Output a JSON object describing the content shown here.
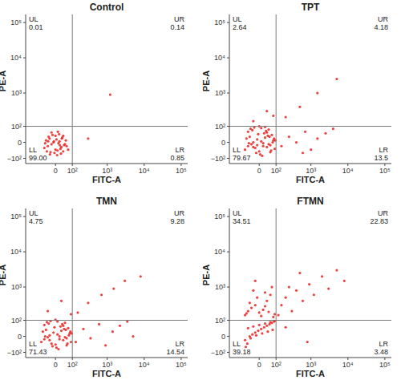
{
  "chart_data": [
    {
      "type": "scatter",
      "title": "Control",
      "xlabel": "FITC-A",
      "ylabel": "PE-A",
      "color": "#e8231f",
      "xlim": [
        -250,
        150000
      ],
      "ylim": [
        -150,
        170000
      ],
      "xticks": [
        0,
        {
          "value": 100,
          "label": "10²"
        },
        {
          "value": 1000,
          "label": "10³"
        },
        {
          "value": 10000,
          "label": "10⁴"
        },
        {
          "value": 100000,
          "label": "10⁵"
        }
      ],
      "yticks": [
        {
          "value": -100,
          "label": "−10²"
        },
        0,
        {
          "value": 100,
          "label": "10²"
        },
        {
          "value": 1000,
          "label": "10³"
        },
        {
          "value": 10000,
          "label": "10⁴"
        },
        {
          "value": 100000,
          "label": "10⁵"
        }
      ],
      "gates": {
        "x": 100,
        "y": 100
      },
      "quadrant_labels": [
        "UL",
        "UR",
        "LL",
        "LR"
      ],
      "quadrant_values": [
        0.01,
        0.14,
        99.0,
        0.85
      ],
      "quadrant_value_labels": [
        "0.01",
        "0.14",
        "99.00",
        "0.85"
      ],
      "x": [
        -60,
        -40,
        -20,
        0,
        15,
        30,
        45,
        -50,
        -30,
        -10,
        5,
        20,
        35,
        50,
        -45,
        -25,
        -5,
        10,
        25,
        40,
        -35,
        -15,
        0,
        18,
        32,
        -55,
        -28,
        8,
        28,
        55,
        -20,
        12,
        60,
        -8,
        22,
        -38,
        40,
        70,
        300,
        1200
      ],
      "values": [
        -30,
        -20,
        -10,
        -40,
        -5,
        -25,
        -15,
        10,
        20,
        0,
        15,
        5,
        25,
        -10,
        -50,
        -55,
        -60,
        -45,
        -35,
        -50,
        30,
        40,
        35,
        45,
        20,
        -5,
        -70,
        -75,
        -65,
        10,
        55,
        60,
        -20,
        5,
        -15,
        5,
        35,
        -40,
        20,
        900
      ]
    },
    {
      "type": "scatter",
      "title": "TPT",
      "xlabel": "FITC-A",
      "ylabel": "PE-A",
      "color": "#e8231f",
      "xlim": [
        -250,
        150000
      ],
      "ylim": [
        -150,
        170000
      ],
      "xticks": [
        0,
        {
          "value": 100,
          "label": "10²"
        },
        {
          "value": 1000,
          "label": "10³"
        },
        {
          "value": 10000,
          "label": "10⁴"
        },
        {
          "value": 100000,
          "label": "10⁵"
        }
      ],
      "yticks": [
        {
          "value": -100,
          "label": "−10²"
        },
        0,
        {
          "value": 100,
          "label": "10²"
        },
        {
          "value": 1000,
          "label": "10³"
        },
        {
          "value": 10000,
          "label": "10⁴"
        },
        {
          "value": 100000,
          "label": "10⁵"
        }
      ],
      "gates": {
        "x": 100,
        "y": 100
      },
      "quadrant_labels": [
        "UL",
        "UR",
        "LL",
        "LR"
      ],
      "quadrant_values": [
        2.64,
        4.18,
        79.67,
        13.5
      ],
      "quadrant_value_labels": [
        "2.64",
        "4.18",
        "79.67",
        "13.5"
      ],
      "x": [
        -80,
        -60,
        -40,
        -20,
        0,
        20,
        40,
        60,
        80,
        -70,
        -50,
        -30,
        -10,
        10,
        30,
        50,
        70,
        90,
        -60,
        -35,
        -15,
        5,
        25,
        45,
        65,
        85,
        -45,
        -25,
        0,
        20,
        40,
        60,
        -55,
        -5,
        15,
        35,
        55,
        75,
        -30,
        10,
        50,
        95,
        30,
        -10,
        150,
        250,
        400,
        700,
        1000,
        1500,
        2500,
        4000,
        600,
        200,
        500,
        1500,
        5000,
        -30,
        40,
        80
      ],
      "values": [
        -40,
        -20,
        -10,
        -30,
        -50,
        -5,
        -25,
        -15,
        10,
        20,
        30,
        0,
        15,
        5,
        25,
        -10,
        40,
        -35,
        60,
        70,
        -60,
        -70,
        50,
        35,
        -45,
        20,
        80,
        90,
        100,
        -20,
        55,
        -55,
        -5,
        45,
        -80,
        65,
        30,
        0,
        -25,
        85,
        75,
        10,
        95,
        -15,
        -20,
        30,
        0,
        60,
        -40,
        20,
        50,
        80,
        -60,
        200,
        400,
        1000,
        2500,
        150,
        300,
        220
      ]
    },
    {
      "type": "scatter",
      "title": "TMN",
      "xlabel": "FITC-A",
      "ylabel": "PE-A",
      "color": "#e8231f",
      "xlim": [
        -250,
        150000
      ],
      "ylim": [
        -150,
        170000
      ],
      "xticks": [
        0,
        {
          "value": 100,
          "label": "10²"
        },
        {
          "value": 1000,
          "label": "10³"
        },
        {
          "value": 10000,
          "label": "10⁴"
        },
        {
          "value": 100000,
          "label": "10⁵"
        }
      ],
      "yticks": [
        {
          "value": -100,
          "label": "−10²"
        },
        0,
        {
          "value": 100,
          "label": "10²"
        },
        {
          "value": 1000,
          "label": "10³"
        },
        {
          "value": 10000,
          "label": "10⁴"
        },
        {
          "value": 100000,
          "label": "10⁵"
        }
      ],
      "gates": {
        "x": 100,
        "y": 100
      },
      "quadrant_labels": [
        "UL",
        "UR",
        "LL",
        "LR"
      ],
      "quadrant_values": [
        4.75,
        9.28,
        71.43,
        14.54
      ],
      "quadrant_value_labels": [
        "4.75",
        "9.28",
        "71.43",
        "14.54"
      ],
      "x": [
        -80,
        -60,
        -40,
        -20,
        0,
        20,
        40,
        60,
        80,
        -70,
        -50,
        -30,
        -10,
        10,
        30,
        50,
        70,
        90,
        -60,
        -35,
        -15,
        5,
        25,
        45,
        65,
        85,
        -45,
        -25,
        0,
        20,
        40,
        60,
        -55,
        -5,
        15,
        35,
        55,
        75,
        -30,
        10,
        50,
        95,
        130,
        220,
        350,
        600,
        900,
        1400,
        2200,
        3500,
        5000,
        150,
        300,
        700,
        1500,
        3000,
        8000,
        -40,
        30,
        90
      ],
      "values": [
        -30,
        -15,
        -5,
        -40,
        -45,
        0,
        -20,
        -10,
        15,
        25,
        35,
        5,
        20,
        10,
        30,
        -5,
        45,
        -30,
        65,
        75,
        -55,
        -65,
        55,
        40,
        -40,
        25,
        85,
        95,
        105,
        -15,
        60,
        -50,
        0,
        50,
        -75,
        70,
        35,
        5,
        -20,
        90,
        80,
        15,
        -30,
        40,
        -10,
        70,
        -50,
        25,
        60,
        90,
        0,
        180,
        350,
        600,
        900,
        1500,
        2000,
        200,
        400,
        160
      ]
    },
    {
      "type": "scatter",
      "title": "FTMN",
      "xlabel": "FITC-A",
      "ylabel": "PE-A",
      "color": "#e8231f",
      "xlim": [
        -250,
        150000
      ],
      "ylim": [
        -150,
        170000
      ],
      "xticks": [
        0,
        {
          "value": 100,
          "label": "10²"
        },
        {
          "value": 1000,
          "label": "10³"
        },
        {
          "value": 10000,
          "label": "10⁴"
        },
        {
          "value": 100000,
          "label": "10⁵"
        }
      ],
      "yticks": [
        {
          "value": -100,
          "label": "−10²"
        },
        0,
        {
          "value": 100,
          "label": "10²"
        },
        {
          "value": 1000,
          "label": "10³"
        },
        {
          "value": 10000,
          "label": "10⁴"
        },
        {
          "value": 100000,
          "label": "10⁵"
        }
      ],
      "gates": {
        "x": 100,
        "y": 100
      },
      "quadrant_labels": [
        "UL",
        "UR",
        "LL",
        "LR"
      ],
      "quadrant_values": [
        34.51,
        22.83,
        39.18,
        3.48
      ],
      "quadrant_value_labels": [
        "34.51",
        "22.83",
        "39.18",
        "3.48"
      ],
      "x": [
        -80,
        -50,
        -20,
        10,
        40,
        70,
        -65,
        -35,
        -5,
        25,
        55,
        85,
        -75,
        -45,
        -15,
        15,
        45,
        75,
        -60,
        -30,
        0,
        30,
        60,
        90,
        -80,
        -60,
        -40,
        -20,
        0,
        20,
        40,
        60,
        80,
        -70,
        -50,
        -30,
        -10,
        10,
        30,
        50,
        70,
        90,
        -20,
        30,
        120,
        150,
        200,
        300,
        400,
        600,
        900,
        1200,
        2000,
        3000,
        5000,
        8000,
        250,
        500,
        200,
        800
      ],
      "values": [
        -20,
        0,
        20,
        40,
        60,
        80,
        -40,
        10,
        30,
        50,
        70,
        90,
        -60,
        -10,
        5,
        15,
        25,
        35,
        45,
        55,
        65,
        75,
        85,
        95,
        150,
        200,
        250,
        300,
        180,
        220,
        400,
        600,
        130,
        170,
        350,
        800,
        500,
        140,
        280,
        190,
        1000,
        160,
        1500,
        700,
        150,
        300,
        500,
        200,
        800,
        400,
        1200,
        600,
        2000,
        900,
        3000,
        1500,
        1000,
        2500,
        50,
        -30
      ]
    }
  ]
}
